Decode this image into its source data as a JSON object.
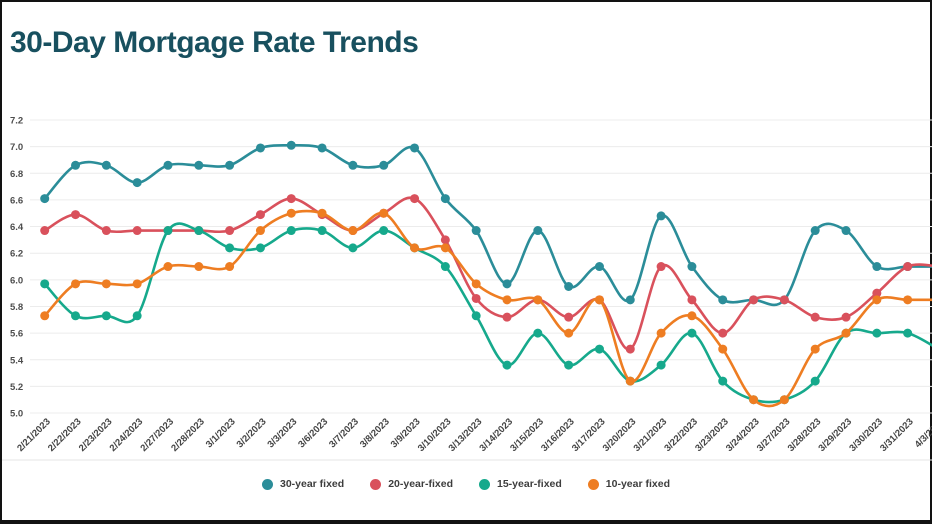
{
  "title": "30-Day Mortgage Rate Trends",
  "chart_data": {
    "type": "line",
    "title": "30-Day Mortgage Rate Trends",
    "xlabel": "",
    "ylabel": "",
    "ylim": [
      5.0,
      7.2
    ],
    "ytick_step": 0.2,
    "ytick_labels": [
      "7.2",
      "7.0",
      "6.8",
      "6.6",
      "6.4",
      "6.2",
      "6.0",
      "5.8",
      "5.6",
      "5.4",
      "5.2",
      "5.0"
    ],
    "grid": true,
    "legend_position": "bottom",
    "x": [
      "2/21/2023",
      "2/22/2023",
      "2/23/2023",
      "2/24/2023",
      "2/27/2023",
      "2/28/2023",
      "3/1/2023",
      "3/2/2023",
      "3/3/2023",
      "3/6/2023",
      "3/7/2023",
      "3/8/2023",
      "3/9/2023",
      "3/10/2023",
      "3/13/2023",
      "3/14/2023",
      "3/15/2023",
      "3/16/2023",
      "3/17/2023",
      "3/20/2023",
      "3/21/2023",
      "3/22/2023",
      "3/23/2023",
      "3/24/2023",
      "3/27/2023",
      "3/28/2023",
      "3/29/2023",
      "3/30/2023",
      "3/31/2023",
      "4/3/2023"
    ],
    "series": [
      {
        "name": "30-year fixed",
        "color": "#2b8d99",
        "values": [
          6.61,
          6.86,
          6.86,
          6.73,
          6.86,
          6.86,
          6.86,
          6.99,
          7.01,
          6.99,
          6.86,
          6.86,
          6.99,
          6.61,
          6.37,
          5.97,
          6.37,
          5.95,
          6.1,
          5.85,
          6.48,
          6.1,
          5.85,
          5.85,
          5.85,
          6.37,
          6.37,
          6.1,
          6.1,
          6.1
        ]
      },
      {
        "name": "20-year-fixed",
        "color": "#d9515c",
        "values": [
          6.37,
          6.49,
          6.37,
          6.37,
          6.37,
          6.37,
          6.37,
          6.49,
          6.61,
          6.49,
          6.37,
          6.5,
          6.61,
          6.3,
          5.86,
          5.72,
          5.85,
          5.72,
          5.85,
          5.48,
          6.1,
          5.85,
          5.6,
          5.85,
          5.85,
          5.72,
          5.72,
          5.9,
          6.1,
          6.1
        ]
      },
      {
        "name": "15-year-fixed",
        "color": "#16a98c",
        "values": [
          5.97,
          5.73,
          5.73,
          5.73,
          6.37,
          6.37,
          6.24,
          6.24,
          6.37,
          6.37,
          6.24,
          6.37,
          6.24,
          6.1,
          5.73,
          5.36,
          5.6,
          5.36,
          5.48,
          5.24,
          5.36,
          5.6,
          5.24,
          5.1,
          5.1,
          5.24,
          5.6,
          5.6,
          5.6,
          5.48
        ]
      },
      {
        "name": "10-year fixed",
        "color": "#ee7d22",
        "values": [
          5.73,
          5.97,
          5.97,
          5.97,
          6.1,
          6.1,
          6.1,
          6.37,
          6.5,
          6.5,
          6.37,
          6.5,
          6.24,
          6.24,
          5.97,
          5.85,
          5.85,
          5.6,
          5.85,
          5.24,
          5.6,
          5.73,
          5.48,
          5.1,
          5.1,
          5.48,
          5.6,
          5.85,
          5.85,
          5.85
        ]
      }
    ]
  }
}
